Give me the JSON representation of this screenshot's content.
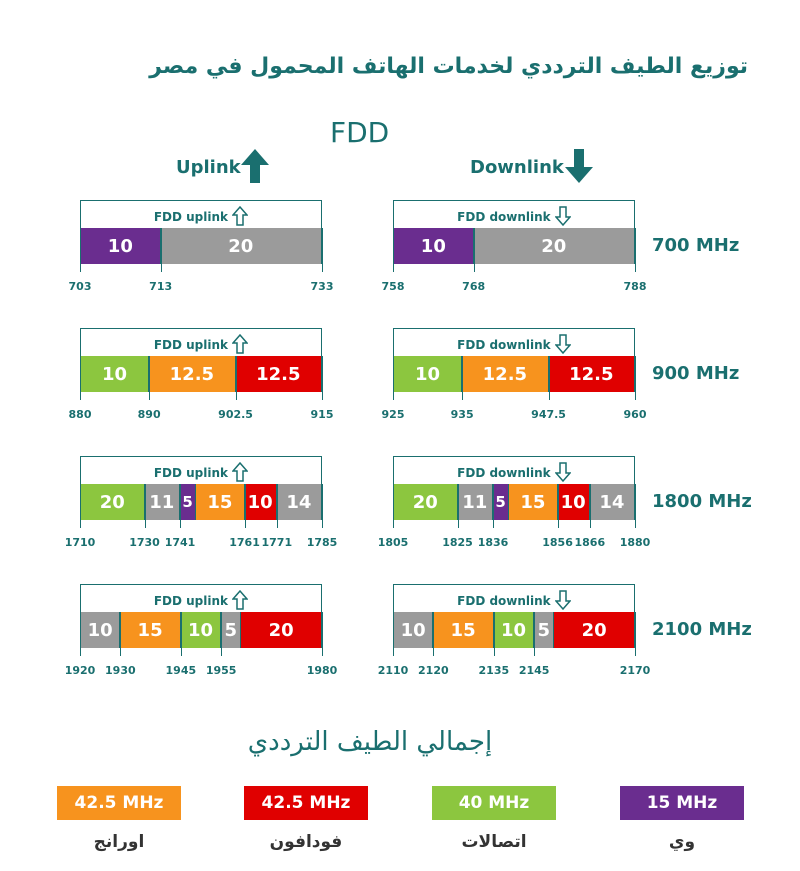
{
  "title": "توزيع الطيف الترددي لخدمات الهاتف المحمول في مصر",
  "fdd_label": "FDD",
  "uplink_label": "Uplink",
  "downlink_label": "Downlink",
  "colors": {
    "teal": "#1a6f6f",
    "purple": "#6a2d8f",
    "gray": "#9b9b9b",
    "green": "#8cc63f",
    "orange": "#f7931e",
    "red": "#e00000"
  },
  "bands": [
    {
      "name": "700 MHz",
      "uplink": {
        "frame_label": "FDD uplink",
        "start": 703,
        "segments": [
          {
            "value": "10",
            "width": 10,
            "color": "#6a2d8f"
          },
          {
            "value": "20",
            "width": 20,
            "color": "#9b9b9b"
          }
        ],
        "ticks": [
          "703",
          "713",
          "733"
        ]
      },
      "downlink": {
        "frame_label": "FDD downlink",
        "start": 758,
        "segments": [
          {
            "value": "10",
            "width": 10,
            "color": "#6a2d8f"
          },
          {
            "value": "20",
            "width": 20,
            "color": "#9b9b9b"
          }
        ],
        "ticks": [
          "758",
          "768",
          "788"
        ]
      }
    },
    {
      "name": "900 MHz",
      "uplink": {
        "frame_label": "FDD uplink",
        "start": 880,
        "segments": [
          {
            "value": "10",
            "width": 10,
            "color": "#8cc63f"
          },
          {
            "value": "12.5",
            "width": 12.5,
            "color": "#f7931e"
          },
          {
            "value": "12.5",
            "width": 12.5,
            "color": "#e00000"
          }
        ],
        "ticks": [
          "880",
          "890",
          "902.5",
          "915"
        ]
      },
      "downlink": {
        "frame_label": "FDD downlink",
        "start": 925,
        "segments": [
          {
            "value": "10",
            "width": 10,
            "color": "#8cc63f"
          },
          {
            "value": "12.5",
            "width": 12.5,
            "color": "#f7931e"
          },
          {
            "value": "12.5",
            "width": 12.5,
            "color": "#e00000"
          }
        ],
        "ticks": [
          "925",
          "935",
          "947.5",
          "960"
        ]
      }
    },
    {
      "name": "1800 MHz",
      "uplink": {
        "frame_label": "FDD uplink",
        "start": 1710,
        "segments": [
          {
            "value": "20",
            "width": 20,
            "color": "#8cc63f"
          },
          {
            "value": "11",
            "width": 11,
            "color": "#9b9b9b"
          },
          {
            "value": "5",
            "width": 5,
            "color": "#6a2d8f"
          },
          {
            "value": "15",
            "width": 15,
            "color": "#f7931e"
          },
          {
            "value": "10",
            "width": 10,
            "color": "#e00000"
          },
          {
            "value": "14",
            "width": 14,
            "color": "#9b9b9b"
          }
        ],
        "ticks": [
          "1710",
          "1730",
          "1741",
          "1761",
          "1771",
          "1785"
        ]
      },
      "downlink": {
        "frame_label": "FDD downlink",
        "start": 1805,
        "segments": [
          {
            "value": "20",
            "width": 20,
            "color": "#8cc63f"
          },
          {
            "value": "11",
            "width": 11,
            "color": "#9b9b9b"
          },
          {
            "value": "5",
            "width": 5,
            "color": "#6a2d8f"
          },
          {
            "value": "15",
            "width": 15,
            "color": "#f7931e"
          },
          {
            "value": "10",
            "width": 10,
            "color": "#e00000"
          },
          {
            "value": "14",
            "width": 14,
            "color": "#9b9b9b"
          }
        ],
        "ticks": [
          "1805",
          "1825",
          "1836",
          "1856",
          "1866",
          "1880"
        ]
      }
    },
    {
      "name": "2100 MHz",
      "uplink": {
        "frame_label": "FDD uplink",
        "start": 1920,
        "segments": [
          {
            "value": "10",
            "width": 10,
            "color": "#9b9b9b"
          },
          {
            "value": "15",
            "width": 15,
            "color": "#f7931e"
          },
          {
            "value": "10",
            "width": 10,
            "color": "#8cc63f"
          },
          {
            "value": "5",
            "width": 5,
            "color": "#9b9b9b"
          },
          {
            "value": "20",
            "width": 20,
            "color": "#e00000"
          }
        ],
        "ticks": [
          "1920",
          "1930",
          "1945",
          "1955",
          "1980"
        ]
      },
      "downlink": {
        "frame_label": "FDD downlink",
        "start": 2110,
        "segments": [
          {
            "value": "10",
            "width": 10,
            "color": "#9b9b9b"
          },
          {
            "value": "15",
            "width": 15,
            "color": "#f7931e"
          },
          {
            "value": "10",
            "width": 10,
            "color": "#8cc63f"
          },
          {
            "value": "5",
            "width": 5,
            "color": "#9b9b9b"
          },
          {
            "value": "20",
            "width": 20,
            "color": "#e00000"
          }
        ],
        "ticks": [
          "2110",
          "2120",
          "2135",
          "2145",
          "2170"
        ]
      }
    }
  ],
  "summary": {
    "title": "إجمالي الطيف الترددي",
    "items": [
      {
        "value": "42.5 MHz",
        "label": "اورانج",
        "color": "#f7931e"
      },
      {
        "value": "42.5 MHz",
        "label": "فودافون",
        "color": "#e00000"
      },
      {
        "value": "40 MHz",
        "label": "اتصالات",
        "color": "#8cc63f"
      },
      {
        "value": "15 MHz",
        "label": "وي",
        "color": "#6a2d8f"
      }
    ]
  }
}
